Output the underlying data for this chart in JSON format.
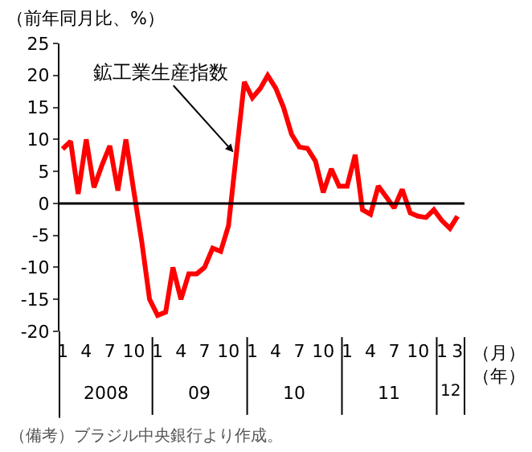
{
  "chart_data": {
    "type": "line",
    "ylabel": "（前年同月比、%）",
    "xlabel": "（月）（年）",
    "x": [
      "2008-01",
      "2008-02",
      "2008-03",
      "2008-04",
      "2008-05",
      "2008-06",
      "2008-07",
      "2008-08",
      "2008-09",
      "2008-10",
      "2008-11",
      "2008-12",
      "2009-01",
      "2009-02",
      "2009-03",
      "2009-04",
      "2009-05",
      "2009-06",
      "2009-07",
      "2009-08",
      "2009-09",
      "2009-10",
      "2009-11",
      "2009-12",
      "2010-01",
      "2010-02",
      "2010-03",
      "2010-04",
      "2010-05",
      "2010-06",
      "2010-07",
      "2010-08",
      "2010-09",
      "2010-10",
      "2010-11",
      "2010-12",
      "2011-01",
      "2011-02",
      "2011-03",
      "2011-04",
      "2011-05",
      "2011-06",
      "2011-07",
      "2011-08",
      "2011-09",
      "2011-10",
      "2011-11",
      "2011-12",
      "2012-01",
      "2012-02",
      "2012-03"
    ],
    "series": [
      {
        "color": "#ff0000",
        "values": [
          8.5,
          9.7,
          1.5,
          10,
          2.5,
          6,
          9,
          2,
          10,
          2,
          -6,
          -15,
          -17.5,
          -17,
          -10,
          -15,
          -11,
          -11,
          -10,
          -7,
          -7.5,
          -3.5,
          8,
          19,
          16.5,
          18,
          20,
          18,
          15,
          10.8,
          8.8,
          8.6,
          6.6,
          1.7,
          5.4,
          2.7,
          2.7,
          7.6,
          -1,
          -1.7,
          2.7,
          1,
          -0.7,
          2.2,
          -1.5,
          -2,
          -2.2,
          -1,
          -2.7,
          -3.9,
          -2
        ]
      }
    ],
    "xlim": [
      "2007-12-20",
      "2012-03-28"
    ],
    "xticks": [
      {
        "value": "2008-01",
        "label": "1"
      },
      {
        "value": "2008-04",
        "label": "4"
      },
      {
        "value": "2008-07",
        "label": "7"
      },
      {
        "value": "2008-10",
        "label": "10"
      },
      {
        "value": "2009-01",
        "label": "1"
      },
      {
        "value": "2009-04",
        "label": "4"
      },
      {
        "value": "2009-07",
        "label": "7"
      },
      {
        "value": "2009-10",
        "label": "10"
      },
      {
        "value": "2010-01",
        "label": "1"
      },
      {
        "value": "2010-04",
        "label": "4"
      },
      {
        "value": "2010-07",
        "label": "7"
      },
      {
        "value": "2010-10",
        "label": "10"
      },
      {
        "value": "2011-01",
        "label": "1"
      },
      {
        "value": "2011-04",
        "label": "4"
      },
      {
        "value": "2011-07",
        "label": "7"
      },
      {
        "value": "2011-10",
        "label": "10"
      },
      {
        "value": "2012-01",
        "label": "1"
      },
      {
        "value": "2012-03",
        "label": "3"
      }
    ],
    "ylim": [
      -20,
      25
    ],
    "yticks": [
      -20,
      -15,
      -10,
      -5,
      0,
      5,
      10,
      15,
      20,
      25
    ],
    "ref_lines": [
      {
        "axis": "y",
        "value": 0,
        "color": "#000000"
      }
    ],
    "annotations": [
      {
        "text": "鉱工業生産指数",
        "x": "2009-10-20",
        "y": 8
      },
      "2008",
      "09",
      "10",
      "11",
      "12",
      "（備考）ブラジル中央銀行より作成。"
    ]
  }
}
